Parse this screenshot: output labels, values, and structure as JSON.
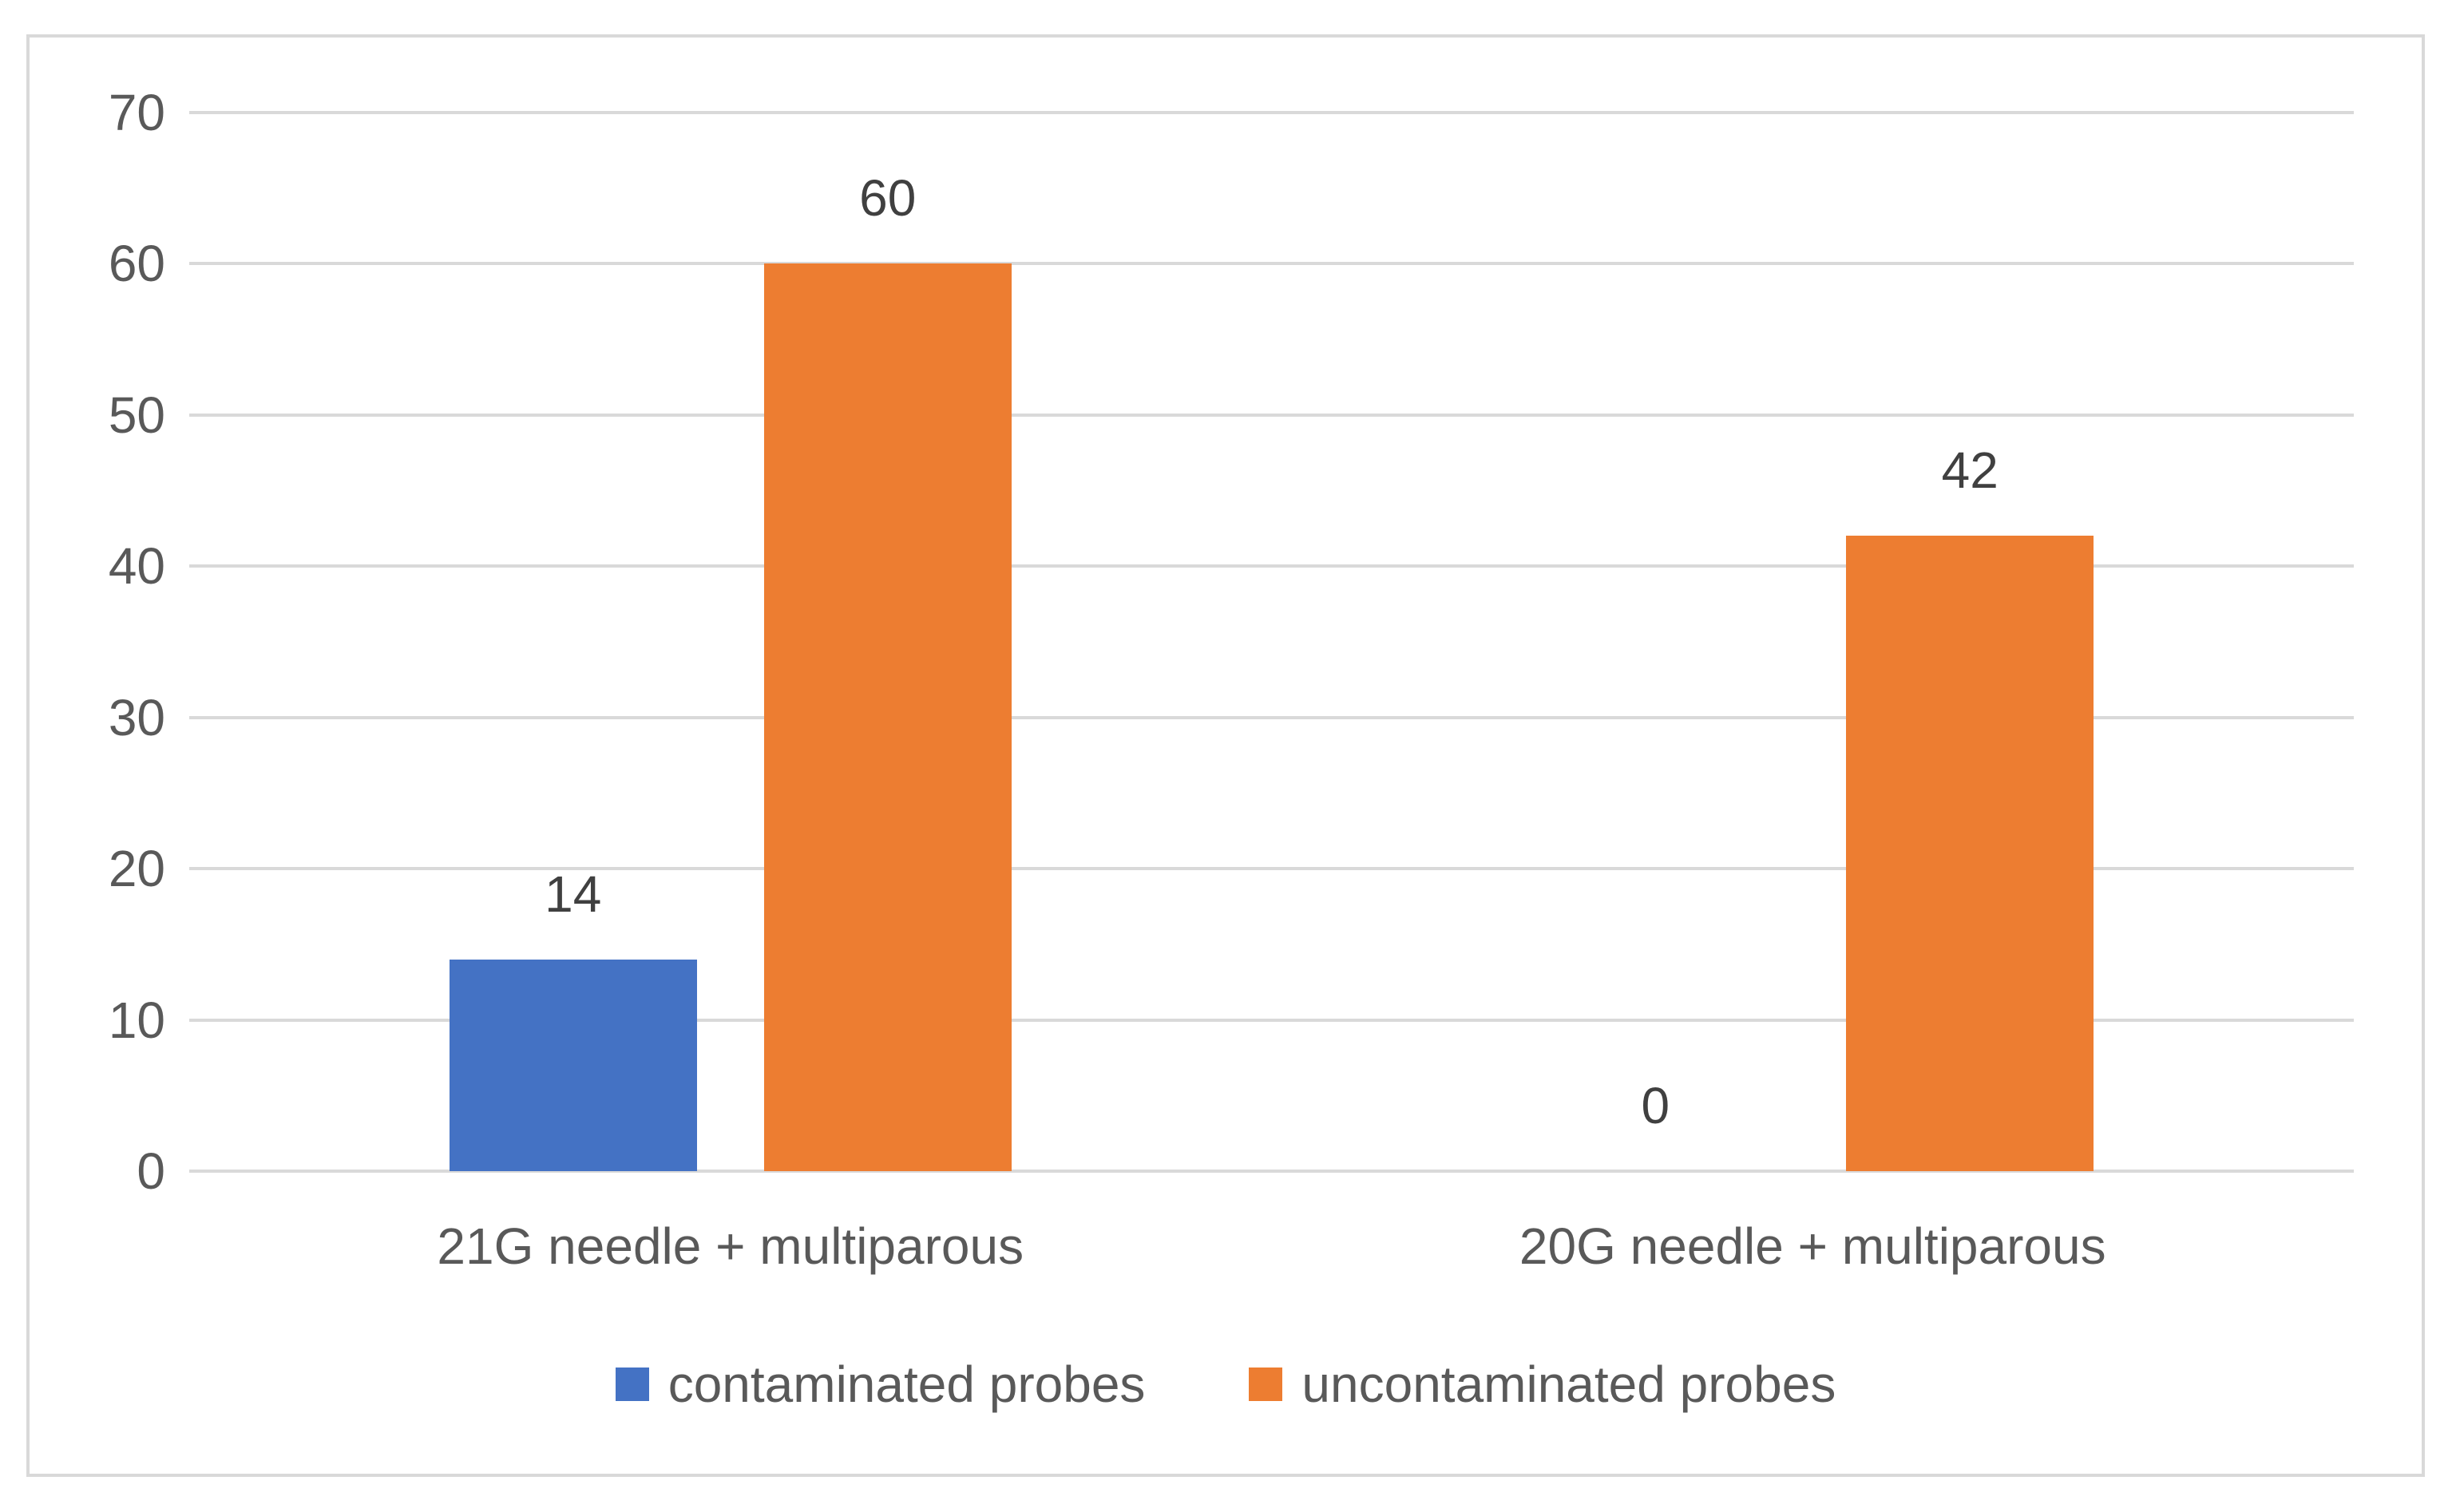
{
  "chart_data": {
    "type": "bar",
    "title": "",
    "xlabel": "",
    "ylabel": "",
    "categories": [
      "21G needle + multiparous",
      "20G needle + multiparous"
    ],
    "series": [
      {
        "name": "contaminated probes",
        "color": "#4472C4",
        "values": [
          14,
          0
        ]
      },
      {
        "name": "uncontaminated probes",
        "color": "#ED7D31",
        "values": [
          60,
          42
        ]
      }
    ],
    "data_labels": [
      {
        "category": "21G needle + multiparous",
        "contaminated probes": 14,
        "uncontaminated probes": 60
      },
      {
        "category": "20G needle + multiparous",
        "contaminated probes": 0,
        "uncontaminated probes": 42
      }
    ],
    "ylim": [
      0,
      70
    ],
    "yticks": [
      0,
      10,
      20,
      30,
      40,
      50,
      60,
      70
    ],
    "grid": true,
    "legend_position": "bottom"
  },
  "colors": {
    "series_blue": "#4472C4",
    "series_orange": "#ED7D31",
    "grid": "#D9D9D9",
    "frame_border": "#D9D9D9",
    "axis_text": "#595959",
    "data_label_text": "#404040",
    "background": "#FFFFFF"
  }
}
